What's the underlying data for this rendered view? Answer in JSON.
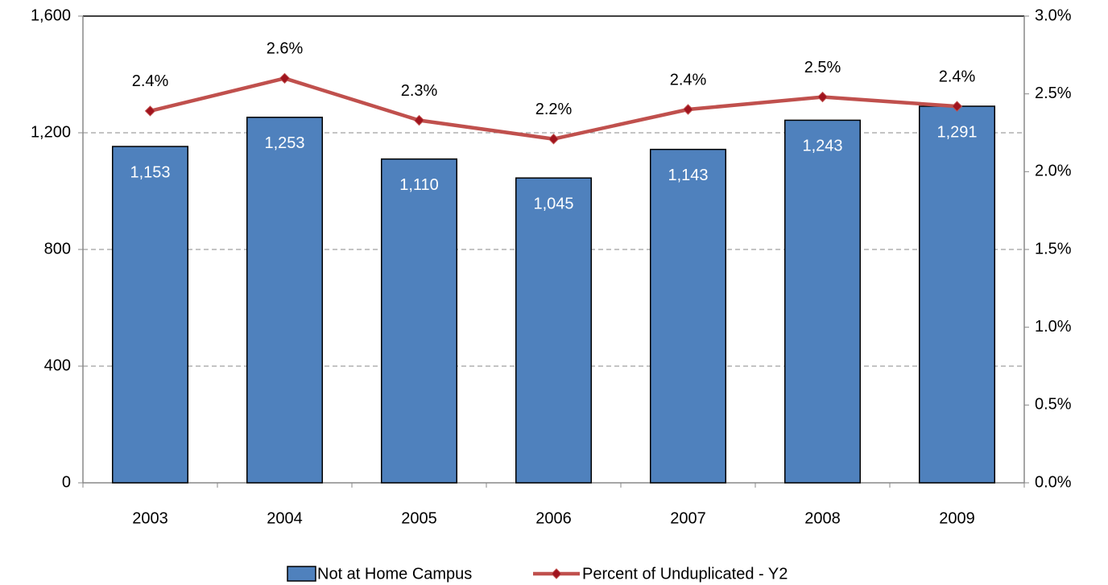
{
  "chart_data": {
    "type": "bar",
    "categories": [
      "2003",
      "2004",
      "2005",
      "2006",
      "2007",
      "2008",
      "2009"
    ],
    "series": [
      {
        "name": "Not at Home Campus",
        "color": "#4f81bd",
        "values": [
          1153,
          1253,
          1110,
          1045,
          1143,
          1243,
          1291
        ],
        "value_labels": [
          "1,153",
          "1,253",
          "1,110",
          "1,045",
          "1,143",
          "1,243",
          "1,291"
        ]
      },
      {
        "name": "Percent of Unduplicated - Y2",
        "type": "line",
        "axis": "y2",
        "color": "#c0504d",
        "marker_color": "#a0141e",
        "values": [
          2.39,
          2.6,
          2.33,
          2.21,
          2.4,
          2.48,
          2.42
        ],
        "value_labels": [
          "2.4%",
          "2.6%",
          "2.3%",
          "2.2%",
          "2.4%",
          "2.5%",
          "2.4%"
        ]
      }
    ],
    "ylim": [
      0,
      1600
    ],
    "yticks": [
      0,
      400,
      800,
      {
        "value": 1200,
        "label": "1,200"
      },
      {
        "value": 1600,
        "label": "1,600"
      }
    ],
    "y2lim": [
      0,
      3.0
    ],
    "y2ticks": [
      {
        "value": 0,
        "label": "0.0%"
      },
      {
        "value": 0.5,
        "label": "0.5%"
      },
      {
        "value": 1.0,
        "label": "1.0%"
      },
      {
        "value": 1.5,
        "label": "1.5%"
      },
      {
        "value": 2.0,
        "label": "2.0%"
      },
      {
        "value": 2.5,
        "label": "2.5%"
      },
      {
        "value": 3.0,
        "label": "3.0%"
      }
    ],
    "grid": true,
    "legend": "bottom"
  }
}
